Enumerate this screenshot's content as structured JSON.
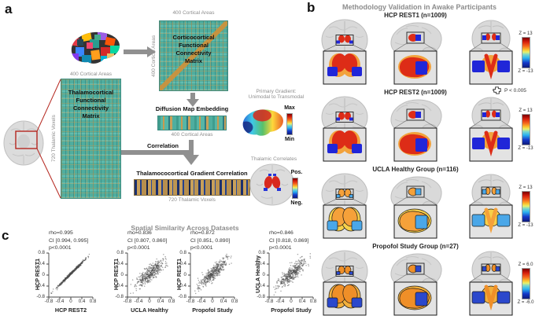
{
  "panel_a": {
    "label": "a",
    "cortical_matrix": {
      "top_label": "400 Cortical Areas",
      "side_label": "400 Cortical Areas",
      "title": "Corticocortical\nFunctional\nConnectivity\nMatrix"
    },
    "thalamo_matrix": {
      "top_label": "400 Cortical Areas",
      "side_label": "720 Thalamic Voxels",
      "title": "Thalamocortical\nFunctional\nConnectivity\nMatrix"
    },
    "diffusion": {
      "title": "Diffusion Map Embedding",
      "bottom_label": "400 Cortical Areas"
    },
    "gradient": {
      "title": "Primary Gradient:\nUnimodal to Transmodal",
      "max_label": "Max",
      "min_label": "Min"
    },
    "correlation_label": "Correlation",
    "gradient_correlation": {
      "title": "Thalamococortical Gradient Correlation",
      "bottom_label": "720 Thalamic Voxels"
    },
    "thalamic_correlates": {
      "title": "Thalamic Correlates",
      "pos_label": "Pos.",
      "neg_label": "Neg."
    }
  },
  "panel_b": {
    "label": "b",
    "title": "Methodology Validation in Awake Participants",
    "p_threshold_label": "P < 0.005",
    "rows": [
      {
        "title": "HCP REST1 (n=1009)",
        "cbar_top": "Z = 13",
        "cbar_bottom": "Z = -13",
        "hot": "#dd2c17",
        "cold": "#2026d8",
        "fringe": "#f2a23c",
        "outline": false
      },
      {
        "title": "HCP REST2 (n=1009)",
        "cbar_top": "Z = 13",
        "cbar_bottom": "Z = -13",
        "hot": "#dd2c17",
        "cold": "#2026d8",
        "fringe": "#f2a23c",
        "outline": false
      },
      {
        "title": "UCLA Healthy Group (n=116)",
        "cbar_top": "Z = 13",
        "cbar_bottom": "Z = -13",
        "hot": "#f5a13a",
        "cold": "#4aa7e8",
        "fringe": "#f7d04a",
        "outline": true
      },
      {
        "title": "Propofol Study Group (n=27)",
        "cbar_top": "Z = 6.0",
        "cbar_bottom": "Z = -6.0",
        "hot": "#ef8f28",
        "cold": "#2b48cc",
        "fringe": "#f2b03c",
        "outline": true
      }
    ]
  },
  "panel_c": {
    "label": "c",
    "title": "Spatial Similarity Across Datasets"
  },
  "chart_data": [
    {
      "type": "scatter",
      "rho": 0.995,
      "rho_label": "rho=0.995",
      "ci_label": "CI [0.994, 0.995]",
      "p_label": "p<0.0001",
      "xlabel": "HCP REST2",
      "ylabel": "HCP REST1",
      "xlim": [
        -0.8,
        0.8
      ],
      "ylim": [
        -0.8,
        0.8
      ],
      "tick_labels": [
        "-0.8",
        "-0.4",
        "0",
        "0.4",
        "0.8"
      ]
    },
    {
      "type": "scatter",
      "rho": 0.836,
      "rho_label": "rho=0.836",
      "ci_label": "CI [0.807, 0.860]",
      "p_label": "p<0.0001",
      "xlabel": "UCLA Healthy",
      "ylabel": "HCP REST1",
      "xlim": [
        -0.8,
        0.8
      ],
      "ylim": [
        -0.8,
        0.8
      ],
      "tick_labels": [
        "-0.8",
        "-0.4",
        "0",
        "0.4",
        "0.8"
      ]
    },
    {
      "type": "scatter",
      "rho": 0.872,
      "rho_label": "rho=0.872",
      "ci_label": "CI [0.851, 0.890]",
      "p_label": "p<0.0001",
      "xlabel": "Propofol Study",
      "ylabel": "HCP REST1",
      "xlim": [
        -0.8,
        0.8
      ],
      "ylim": [
        -0.8,
        0.8
      ],
      "tick_labels": [
        "-0.8",
        "-0.4",
        "0",
        "0.4",
        "0.8"
      ]
    },
    {
      "type": "scatter",
      "rho": 0.846,
      "rho_label": "rho=0.846",
      "ci_label": "CI [0.818, 0.869]",
      "p_label": "p<0.0001",
      "xlabel": "Propofol Study",
      "ylabel": "UCLA Healthy",
      "xlim": [
        -0.8,
        0.8
      ],
      "ylim": [
        -0.8,
        0.8
      ],
      "tick_labels": [
        "-0.8",
        "-0.4",
        "0",
        "0.4",
        "0.8"
      ]
    }
  ],
  "colors": {
    "matrix_teal": "#4fae9f",
    "accent_red": "#b5271f",
    "gray_text": "#8c8c8c",
    "arrow_gray": "#909090"
  }
}
